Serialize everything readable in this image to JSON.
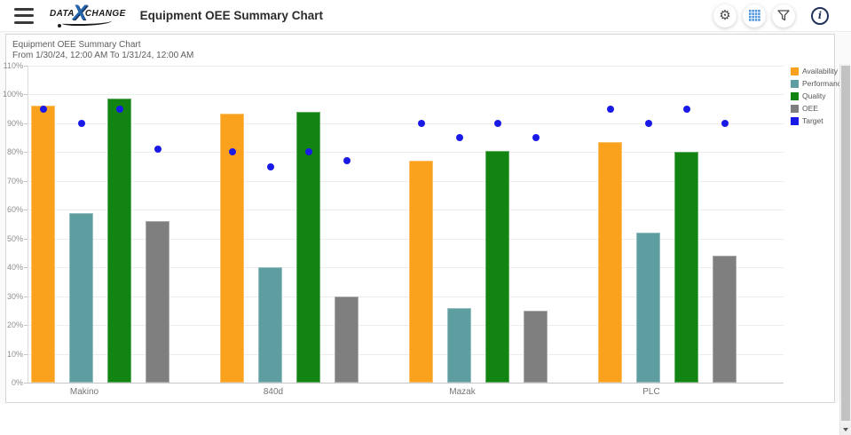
{
  "header": {
    "title": "Equipment OEE Summary Chart",
    "logo": {
      "word1": "DATA",
      "x": "X",
      "word2": "CHANGE"
    },
    "icons": {
      "gear_glyph": "⚙",
      "info_glyph": "i"
    }
  },
  "chart_data": {
    "type": "bar",
    "title": "Equipment OEE Summary Chart",
    "subtitle": "From 1/30/24, 12:00 AM To 1/31/24, 12:00 AM",
    "categories": [
      "Makino",
      "840d",
      "Mazak",
      "PLC"
    ],
    "series": [
      {
        "name": "Availability",
        "type": "bar",
        "color": "#FAA21D",
        "values": [
          96,
          93.5,
          77,
          83.5
        ]
      },
      {
        "name": "Performance",
        "type": "bar",
        "color": "#5F9EA0",
        "values": [
          59,
          40,
          26,
          52
        ]
      },
      {
        "name": "Quality",
        "type": "bar",
        "color": "#128412",
        "values": [
          98.5,
          94,
          80.5,
          80
        ]
      },
      {
        "name": "OEE",
        "type": "bar",
        "color": "#7F7F7F",
        "values": [
          56,
          30,
          25,
          44
        ]
      },
      {
        "name": "Target",
        "type": "scatter",
        "color": "#1A1AE6",
        "values_per_bar": [
          [
            95,
            90,
            95,
            81
          ],
          [
            80,
            75,
            80,
            77
          ],
          [
            90,
            85,
            90,
            85
          ],
          [
            95,
            90,
            95,
            90
          ]
        ]
      }
    ],
    "ylim": [
      0,
      110
    ],
    "ytick_step": 10,
    "ytick_suffix": "%",
    "grid": true,
    "legend_position": "right"
  }
}
